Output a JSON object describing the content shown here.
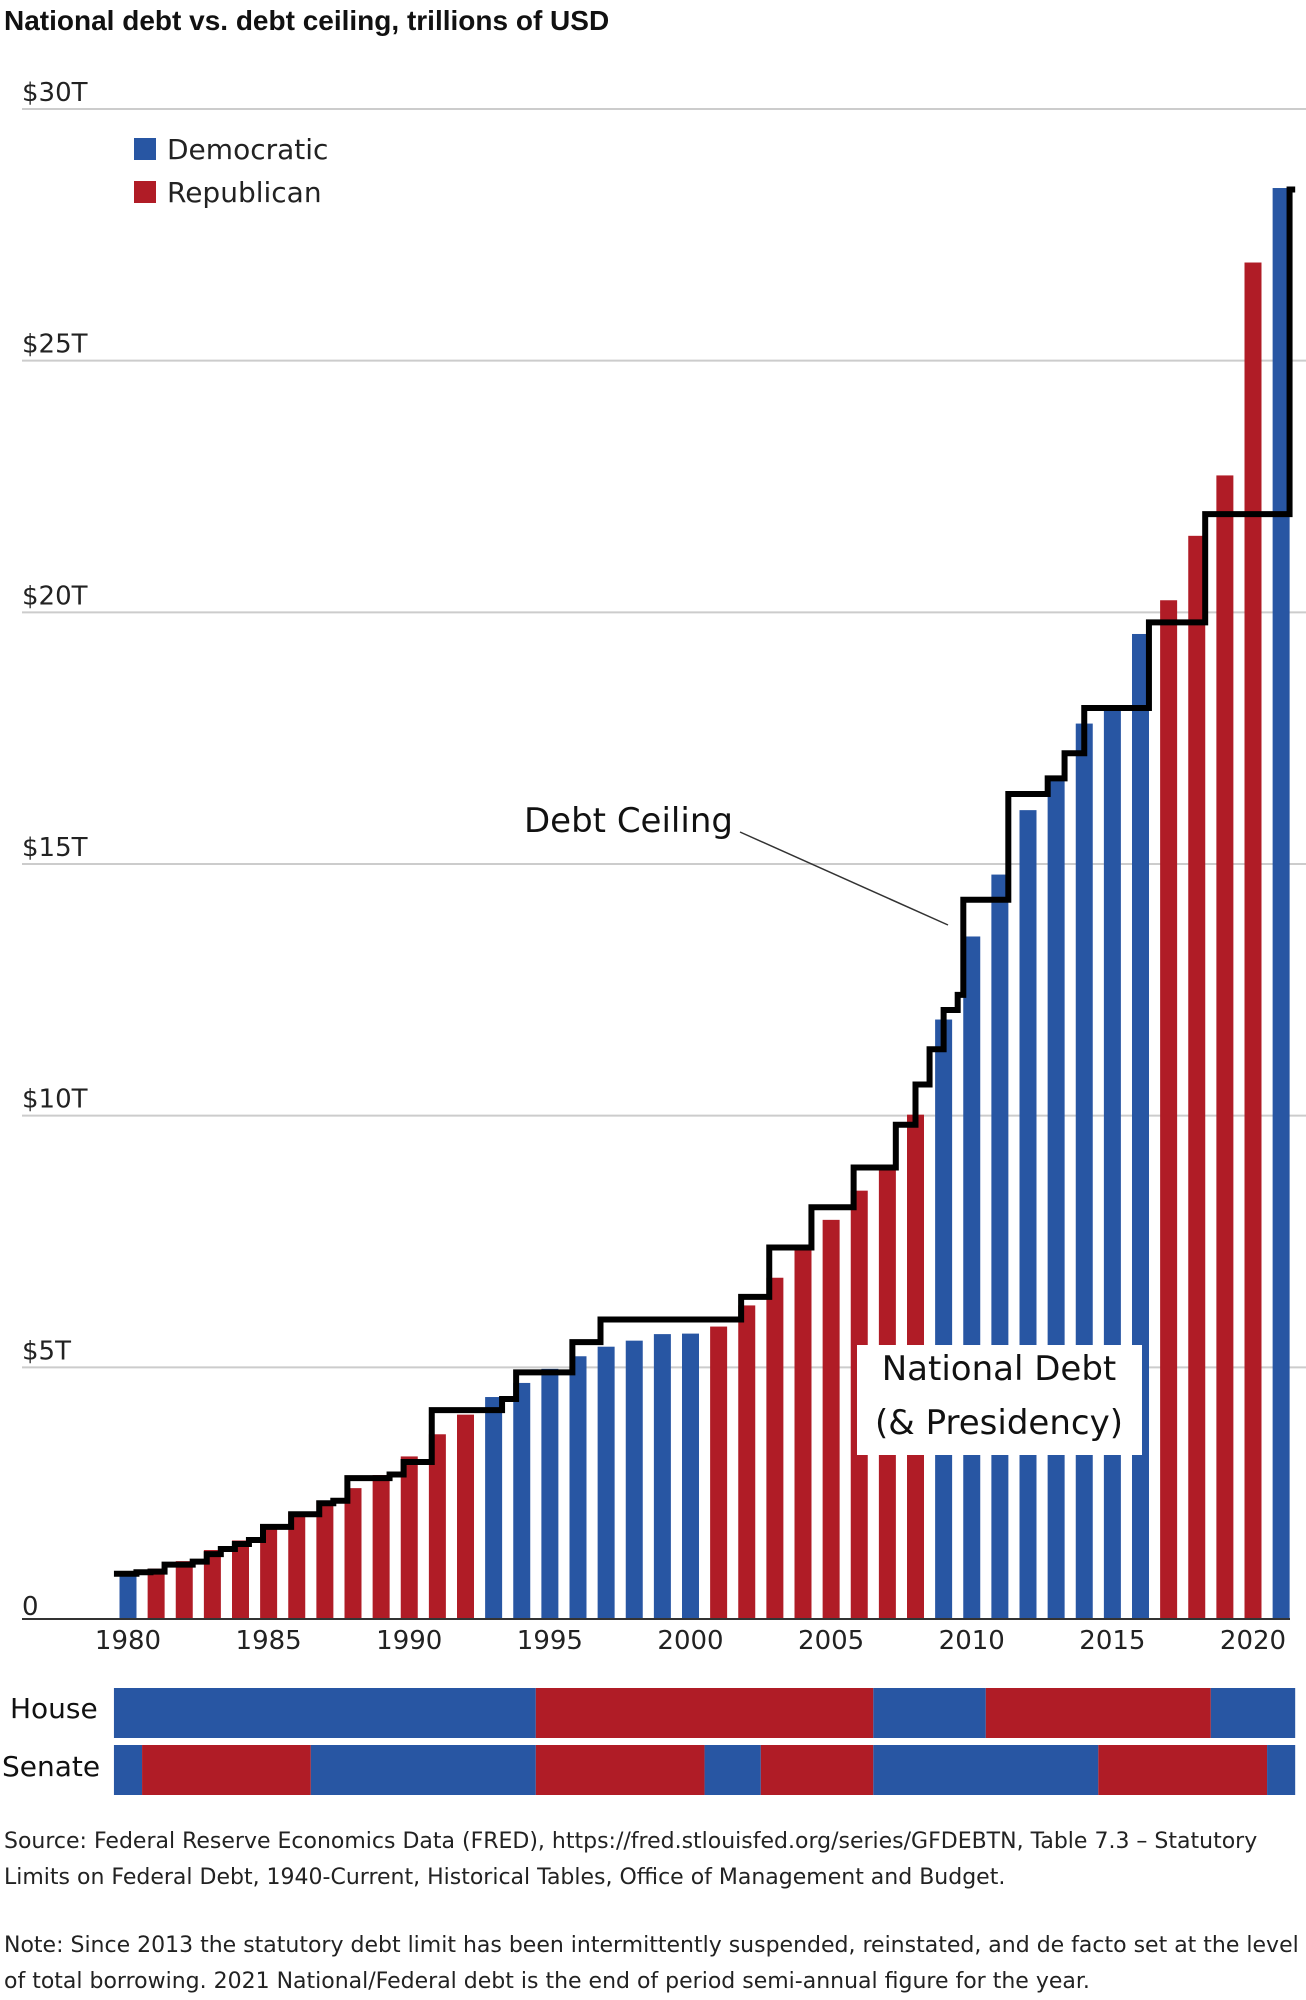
{
  "colors": {
    "democratic": "#2856a3",
    "republican": "#b01c26",
    "ceiling": "#000000",
    "grid": "#cccccc"
  },
  "chart_data": {
    "type": "bar",
    "title": "National debt vs. debt ceiling, trillions of USD",
    "y_unit": "trillions of USD",
    "ylim": [
      0,
      30
    ],
    "xlim": [
      1979,
      2021
    ],
    "y_ticks": [
      {
        "value": 0,
        "label": "0"
      },
      {
        "value": 5,
        "label": "$5T"
      },
      {
        "value": 10,
        "label": "$10T"
      },
      {
        "value": 15,
        "label": "$15T"
      },
      {
        "value": 20,
        "label": "$20T"
      },
      {
        "value": 25,
        "label": "$25T"
      },
      {
        "value": 30,
        "label": "$30T"
      }
    ],
    "x_ticks": [
      {
        "value": 1980,
        "label": "1980"
      },
      {
        "value": 1985,
        "label": "1985"
      },
      {
        "value": 1990,
        "label": "1990"
      },
      {
        "value": 1995,
        "label": "1995"
      },
      {
        "value": 2000,
        "label": "2000"
      },
      {
        "value": 2005,
        "label": "2005"
      },
      {
        "value": 2010,
        "label": "2010"
      },
      {
        "value": 2015,
        "label": "2015"
      },
      {
        "value": 2020,
        "label": "2020"
      }
    ],
    "grid": true,
    "legend": {
      "placement": "top-left",
      "items": [
        {
          "label": "Democratic",
          "key": "D"
        },
        {
          "label": "Republican",
          "key": "R"
        }
      ]
    },
    "national_debt": {
      "annotation": [
        "National Debt",
        "(& Presidency)"
      ],
      "points": [
        {
          "year": 1980,
          "value": 0.91,
          "party": "D"
        },
        {
          "year": 1981,
          "value": 1.0,
          "party": "R"
        },
        {
          "year": 1982,
          "value": 1.15,
          "party": "R"
        },
        {
          "year": 1983,
          "value": 1.37,
          "party": "R"
        },
        {
          "year": 1984,
          "value": 1.56,
          "party": "R"
        },
        {
          "year": 1985,
          "value": 1.82,
          "party": "R"
        },
        {
          "year": 1986,
          "value": 2.12,
          "party": "R"
        },
        {
          "year": 1987,
          "value": 2.35,
          "party": "R"
        },
        {
          "year": 1988,
          "value": 2.6,
          "party": "R"
        },
        {
          "year": 1989,
          "value": 2.86,
          "party": "R"
        },
        {
          "year": 1990,
          "value": 3.23,
          "party": "R"
        },
        {
          "year": 1991,
          "value": 3.67,
          "party": "R"
        },
        {
          "year": 1992,
          "value": 4.06,
          "party": "R"
        },
        {
          "year": 1993,
          "value": 4.41,
          "party": "D"
        },
        {
          "year": 1994,
          "value": 4.69,
          "party": "D"
        },
        {
          "year": 1995,
          "value": 4.97,
          "party": "D"
        },
        {
          "year": 1996,
          "value": 5.22,
          "party": "D"
        },
        {
          "year": 1997,
          "value": 5.41,
          "party": "D"
        },
        {
          "year": 1998,
          "value": 5.53,
          "party": "D"
        },
        {
          "year": 1999,
          "value": 5.66,
          "party": "D"
        },
        {
          "year": 2000,
          "value": 5.67,
          "party": "D"
        },
        {
          "year": 2001,
          "value": 5.81,
          "party": "R"
        },
        {
          "year": 2002,
          "value": 6.23,
          "party": "R"
        },
        {
          "year": 2003,
          "value": 6.78,
          "party": "R"
        },
        {
          "year": 2004,
          "value": 7.38,
          "party": "R"
        },
        {
          "year": 2005,
          "value": 7.93,
          "party": "R"
        },
        {
          "year": 2006,
          "value": 8.51,
          "party": "R"
        },
        {
          "year": 2007,
          "value": 9.01,
          "party": "R"
        },
        {
          "year": 2008,
          "value": 10.02,
          "party": "R"
        },
        {
          "year": 2009,
          "value": 11.91,
          "party": "D"
        },
        {
          "year": 2010,
          "value": 13.56,
          "party": "D"
        },
        {
          "year": 2011,
          "value": 14.79,
          "party": "D"
        },
        {
          "year": 2012,
          "value": 16.07,
          "party": "D"
        },
        {
          "year": 2013,
          "value": 16.72,
          "party": "D"
        },
        {
          "year": 2014,
          "value": 17.79,
          "party": "D"
        },
        {
          "year": 2015,
          "value": 18.14,
          "party": "D"
        },
        {
          "year": 2016,
          "value": 19.57,
          "party": "D"
        },
        {
          "year": 2017,
          "value": 20.24,
          "party": "R"
        },
        {
          "year": 2018,
          "value": 21.52,
          "party": "R"
        },
        {
          "year": 2019,
          "value": 22.72,
          "party": "R"
        },
        {
          "year": 2020,
          "value": 26.95,
          "party": "R"
        },
        {
          "year": 2021,
          "value": 28.43,
          "party": "D"
        }
      ]
    },
    "debt_ceiling": {
      "label": "Debt Ceiling",
      "points": [
        [
          1979.5,
          0.9
        ],
        [
          1980.3,
          0.93
        ],
        [
          1980.8,
          0.94
        ],
        [
          1981.3,
          1.08
        ],
        [
          1981.8,
          1.08
        ],
        [
          1982.3,
          1.14
        ],
        [
          1982.8,
          1.29
        ],
        [
          1983.3,
          1.39
        ],
        [
          1983.8,
          1.49
        ],
        [
          1984.3,
          1.57
        ],
        [
          1984.8,
          1.83
        ],
        [
          1985.3,
          1.83
        ],
        [
          1985.8,
          2.08
        ],
        [
          1986.3,
          2.08
        ],
        [
          1986.8,
          2.3
        ],
        [
          1987.3,
          2.35
        ],
        [
          1987.8,
          2.8
        ],
        [
          1988.3,
          2.8
        ],
        [
          1988.8,
          2.8
        ],
        [
          1989.3,
          2.87
        ],
        [
          1989.8,
          3.12
        ],
        [
          1990.3,
          3.12
        ],
        [
          1990.8,
          4.15
        ],
        [
          1991.3,
          4.15
        ],
        [
          1991.8,
          4.15
        ],
        [
          1992.3,
          4.15
        ],
        [
          1992.8,
          4.15
        ],
        [
          1993.3,
          4.37
        ],
        [
          1993.8,
          4.9
        ],
        [
          1994.3,
          4.9
        ],
        [
          1994.8,
          4.9
        ],
        [
          1995.3,
          4.9
        ],
        [
          1995.8,
          5.5
        ],
        [
          1996.3,
          5.5
        ],
        [
          1996.8,
          5.95
        ],
        [
          1997.3,
          5.95
        ],
        [
          1997.8,
          5.95
        ],
        [
          1998.3,
          5.95
        ],
        [
          1998.8,
          5.95
        ],
        [
          1999.3,
          5.95
        ],
        [
          1999.8,
          5.95
        ],
        [
          2000.3,
          5.95
        ],
        [
          2000.8,
          5.95
        ],
        [
          2001.3,
          5.95
        ],
        [
          2001.8,
          6.4
        ],
        [
          2002.3,
          6.4
        ],
        [
          2002.8,
          7.38
        ],
        [
          2003.3,
          7.38
        ],
        [
          2003.8,
          7.38
        ],
        [
          2004.3,
          8.18
        ],
        [
          2004.8,
          8.18
        ],
        [
          2005.3,
          8.18
        ],
        [
          2005.8,
          8.97
        ],
        [
          2006.3,
          8.97
        ],
        [
          2006.8,
          8.97
        ],
        [
          2007.3,
          9.82
        ],
        [
          2007.8,
          9.82
        ],
        [
          2008.0,
          10.62
        ],
        [
          2008.3,
          10.62
        ],
        [
          2008.5,
          11.32
        ],
        [
          2008.8,
          11.32
        ],
        [
          2009.0,
          12.1
        ],
        [
          2009.3,
          12.1
        ],
        [
          2009.5,
          12.4
        ],
        [
          2009.7,
          14.29
        ],
        [
          2010.0,
          14.29
        ],
        [
          2010.3,
          14.29
        ],
        [
          2010.7,
          14.29
        ],
        [
          2011.0,
          14.29
        ],
        [
          2011.3,
          16.39
        ],
        [
          2011.7,
          16.39
        ],
        [
          2012.0,
          16.39
        ],
        [
          2012.3,
          16.39
        ],
        [
          2012.7,
          16.7
        ],
        [
          2013.0,
          16.7
        ],
        [
          2013.3,
          17.2
        ],
        [
          2013.7,
          17.2
        ],
        [
          2014.0,
          18.1
        ],
        [
          2014.3,
          18.1
        ],
        [
          2014.7,
          18.1
        ],
        [
          2015.0,
          18.1
        ],
        [
          2015.3,
          18.1
        ],
        [
          2015.7,
          18.1
        ],
        [
          2016.0,
          18.1
        ],
        [
          2016.3,
          19.8
        ],
        [
          2016.7,
          19.8
        ],
        [
          2017.0,
          19.8
        ],
        [
          2017.3,
          19.8
        ],
        [
          2017.7,
          19.8
        ],
        [
          2018.0,
          19.8
        ],
        [
          2018.3,
          21.95
        ],
        [
          2018.7,
          21.95
        ],
        [
          2019.0,
          21.95
        ],
        [
          2019.3,
          21.95
        ],
        [
          2019.7,
          21.95
        ],
        [
          2020.0,
          21.95
        ],
        [
          2020.3,
          21.95
        ],
        [
          2020.7,
          21.95
        ],
        [
          2021.0,
          21.95
        ],
        [
          2021.3,
          28.4
        ],
        [
          2021.5,
          28.4
        ]
      ]
    }
  },
  "congress": {
    "rows": [
      {
        "label": "House",
        "segments": [
          {
            "from": 1979.5,
            "to": 1994.5,
            "party": "D"
          },
          {
            "from": 1994.5,
            "to": 2006.5,
            "party": "R"
          },
          {
            "from": 2006.5,
            "to": 2010.5,
            "party": "D"
          },
          {
            "from": 2010.5,
            "to": 2018.5,
            "party": "R"
          },
          {
            "from": 2018.5,
            "to": 2021.5,
            "party": "D"
          }
        ]
      },
      {
        "label": "Senate",
        "segments": [
          {
            "from": 1979.5,
            "to": 1980.5,
            "party": "D"
          },
          {
            "from": 1980.5,
            "to": 1986.5,
            "party": "R"
          },
          {
            "from": 1986.5,
            "to": 1994.5,
            "party": "D"
          },
          {
            "from": 1994.5,
            "to": 2000.5,
            "party": "R"
          },
          {
            "from": 2000.5,
            "to": 2002.5,
            "party": "D"
          },
          {
            "from": 2002.5,
            "to": 2006.5,
            "party": "R"
          },
          {
            "from": 2006.5,
            "to": 2014.5,
            "party": "D"
          },
          {
            "from": 2014.5,
            "to": 2020.5,
            "party": "R"
          },
          {
            "from": 2020.5,
            "to": 2021.5,
            "party": "D"
          }
        ]
      }
    ]
  },
  "footer": {
    "source_line1": "Source: Federal Reserve Economics Data (FRED), https://fred.stlouisfed.org/series/GFDEBTN, Table 7.3 – Statutory",
    "source_line2": "Limits on Federal Debt, 1940-Current, Historical Tables, Office of Management and Budget.",
    "note_line1": "Note: Since 2013 the statutory debt limit has been intermittently suspended, reinstated, and de facto set at the level",
    "note_line2": "of total borrowing. 2021 National/Federal debt is the end of period semi-annual figure for the year."
  }
}
